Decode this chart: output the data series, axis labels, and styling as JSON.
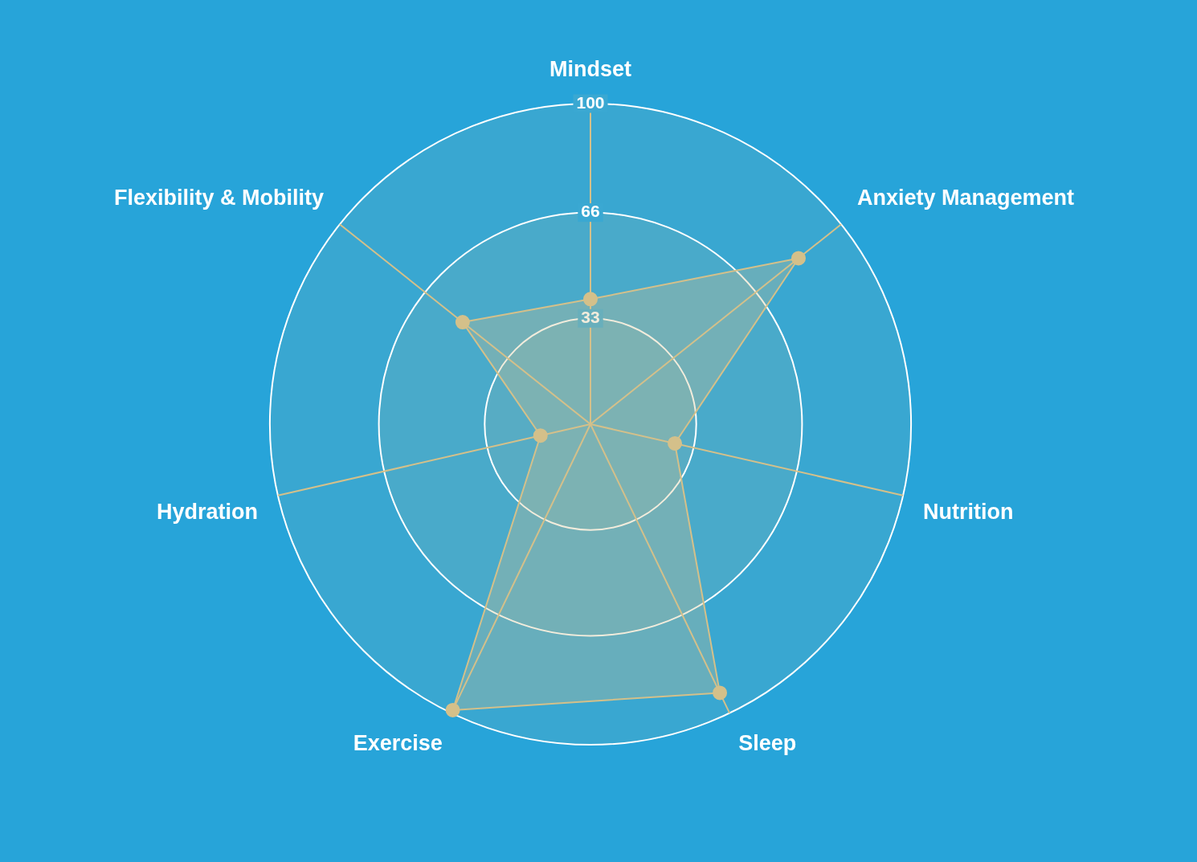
{
  "chart_data": {
    "type": "radar",
    "categories": [
      "Mindset",
      "Anxiety Management",
      "Nutrition",
      "Sleep",
      "Exercise",
      "Hydration",
      "Flexibility & Mobility"
    ],
    "series": [
      {
        "color": "#d4c08a",
        "values": [
          39,
          83,
          27,
          93,
          99,
          16,
          51
        ]
      }
    ],
    "ylim": [
      0,
      100
    ],
    "yticks": [
      33,
      66,
      100
    ],
    "grid": true,
    "legend": false,
    "marker": "circle"
  }
}
